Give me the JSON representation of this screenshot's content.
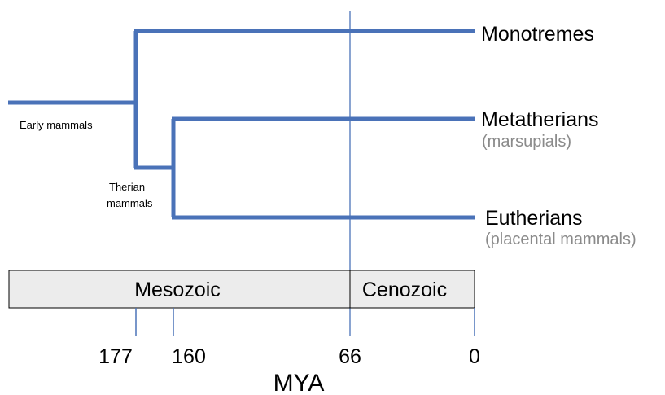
{
  "colors": {
    "branch": "#4a72b8",
    "boundary_line": "#4a72b8",
    "era_box_fill": "#ececec",
    "era_box_stroke": "#000000",
    "subtitle_text": "#8a8a8a"
  },
  "nodes": {
    "early": "Early mammals",
    "therian_line1": "Therian",
    "therian_line2": "mammals"
  },
  "clades": [
    {
      "name": "Monotremes",
      "note": ""
    },
    {
      "name": "Metatherians",
      "note": "(marsupials)"
    },
    {
      "name": "Eutherians",
      "note": "(placental mammals)"
    }
  ],
  "eras": {
    "mesozoic": "Mesozoic",
    "cenozoic": "Cenozoic"
  },
  "axis": {
    "ticks": [
      "177",
      "160",
      "66",
      "0"
    ],
    "title": "MYA"
  }
}
